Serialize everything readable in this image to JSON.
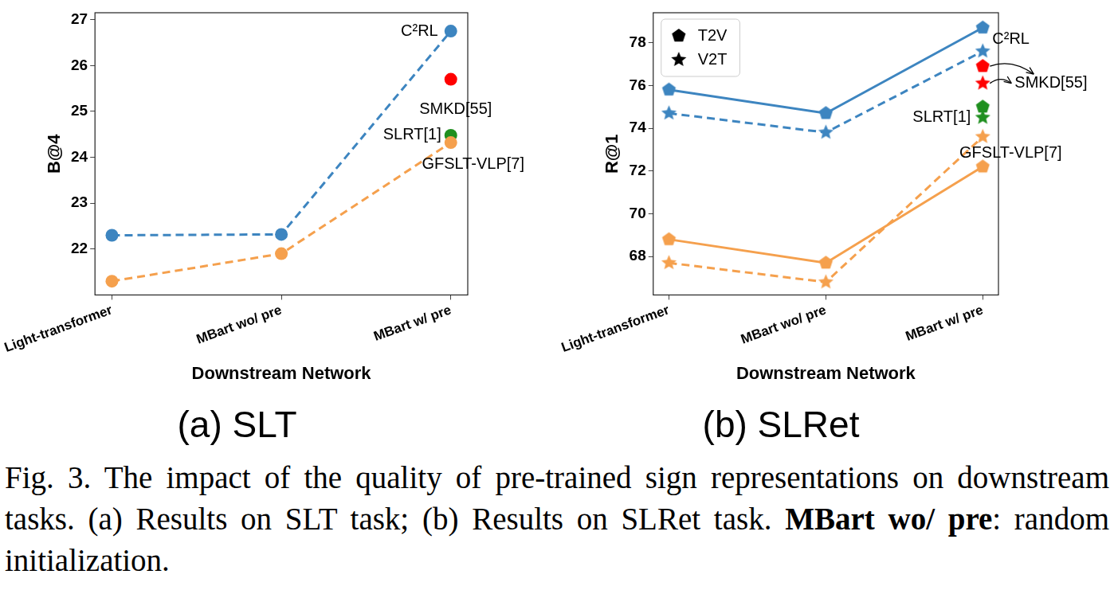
{
  "chart_data": [
    {
      "type": "line",
      "title": "(a) SLT",
      "x_label": "Downstream Network",
      "y_label": "B@4",
      "categories": [
        "Light-transformer",
        "MBart wo/ pre",
        "MBart w/ pre"
      ],
      "series": [
        {
          "color": "#3d85c0",
          "values": [
            22.3,
            22.32,
            26.75
          ],
          "marker": "circle",
          "line_style": "dashed"
        },
        {
          "color": "#f5a04d",
          "values": [
            21.3,
            21.9,
            24.32
          ],
          "marker": "circle",
          "line_style": "dashed"
        },
        {
          "color": "#ff0000",
          "values": [
            null,
            null,
            25.7
          ],
          "marker": "circle",
          "line_style": "none"
        },
        {
          "color": "#1f8f1f",
          "values": [
            null,
            null,
            24.48
          ],
          "marker": "circle",
          "line_style": "none"
        }
      ],
      "annotations": [
        {
          "text": "C²RL",
          "x": "MBart w/ pre",
          "y": 26.75
        },
        {
          "text": "SMKD[55]",
          "x": "MBart w/ pre",
          "y": 25.7
        },
        {
          "text": "SLRT[1]",
          "x": "MBart w/ pre",
          "y": 24.48
        },
        {
          "text": "GFSLT-VLP[7]",
          "x": "MBart w/ pre",
          "y": 24.32
        }
      ],
      "ylim": [
        21.0,
        27.15
      ],
      "yticks": [
        22,
        23,
        24,
        25,
        26,
        27
      ],
      "grid": false,
      "legend": false
    },
    {
      "type": "line",
      "title": "(b) SLRet",
      "x_label": "Downstream Network",
      "y_label": "R@1",
      "categories": [
        "Light-transformer",
        "MBart wo/ pre",
        "MBart w/ pre"
      ],
      "series": [
        {
          "name": "T2V",
          "color": "#3d85c0",
          "values": [
            75.8,
            74.7,
            78.7
          ],
          "marker": "pentagon",
          "line_style": "solid"
        },
        {
          "name": "V2T",
          "color": "#3d85c0",
          "values": [
            74.7,
            73.8,
            77.6
          ],
          "marker": "star",
          "line_style": "dashed"
        },
        {
          "name": "T2V",
          "color": "#f5a04d",
          "values": [
            68.8,
            67.7,
            72.2
          ],
          "marker": "pentagon",
          "line_style": "solid"
        },
        {
          "name": "V2T",
          "color": "#f5a04d",
          "values": [
            67.7,
            66.8,
            73.6
          ],
          "marker": "star",
          "line_style": "dashed"
        },
        {
          "name": "T2V",
          "color": "#ff0000",
          "values": [
            null,
            null,
            76.9
          ],
          "marker": "pentagon",
          "line_style": "none"
        },
        {
          "name": "V2T",
          "color": "#ff0000",
          "values": [
            null,
            null,
            76.1
          ],
          "marker": "star",
          "line_style": "none"
        },
        {
          "name": "T2V",
          "color": "#1f8f1f",
          "values": [
            null,
            null,
            75.0
          ],
          "marker": "pentagon",
          "line_style": "none"
        },
        {
          "name": "V2T",
          "color": "#1f8f1f",
          "values": [
            null,
            null,
            74.5
          ],
          "marker": "star",
          "line_style": "none"
        }
      ],
      "annotations": [
        {
          "text": "C²RL",
          "x": "MBart w/ pre",
          "y": 78.7
        },
        {
          "text": "SMKD[55]",
          "x": "MBart w/ pre",
          "y": 76.1
        },
        {
          "text": "SLRT[1]",
          "x": "MBart w/ pre",
          "y": 74.5
        },
        {
          "text": "GFSLT-VLP[7]",
          "x": "MBart w/ pre",
          "y": 73.6
        }
      ],
      "ylim": [
        66.2,
        79.4
      ],
      "yticks": [
        68,
        70,
        72,
        74,
        76,
        78
      ],
      "grid": false,
      "legend": "upper left"
    }
  ],
  "caption": [
    {
      "text": "Fig. 3.  The impact of the quality of pre-trained sign representations on downstream tasks. (a) Results on SLT task; (b) Results on SLRet task. ",
      "bold": false
    },
    {
      "text": "MBart wo/ pre",
      "bold": true
    },
    {
      "text": ": random initialization.",
      "bold": false
    }
  ]
}
